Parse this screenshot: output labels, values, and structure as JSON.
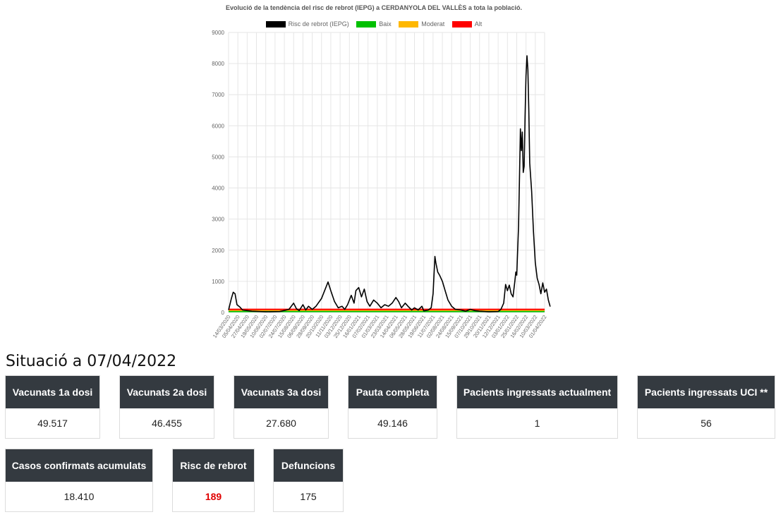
{
  "chart_data": {
    "type": "line",
    "title": "Evolució de la tendència del risc de rebrot (IEPG) a CERDANYOLA DEL VALLÈS a tota la població.",
    "series_names": [
      "Risc de rebrot (IEPG)",
      "Baix",
      "Moderat",
      "Alt"
    ],
    "series_colors": [
      "#000000",
      "#00c000",
      "#ffb800",
      "#ff0000"
    ],
    "ylim": [
      0,
      9000
    ],
    "yticks": [
      "0",
      "1000",
      "2000",
      "3000",
      "4000",
      "5000",
      "6000",
      "7000",
      "8000",
      "9000"
    ],
    "xticks": [
      "14/03/2020",
      "05/04/2020",
      "27/04/2020",
      "19/05/2020",
      "10/06/2020",
      "02/07/2020",
      "24/07/2020",
      "15/08/2020",
      "06/09/2020",
      "28/09/2020",
      "20/10/2020",
      "11/11/2020",
      "03/12/2020",
      "25/12/2020",
      "16/01/2021",
      "07/02/2021",
      "01/03/2021",
      "23/03/2021",
      "14/04/2021",
      "06/05/2021",
      "28/05/2021",
      "19/06/2021",
      "11/07/2021",
      "02/08/2021",
      "24/08/2021",
      "15/09/2021",
      "07/10/2021",
      "29/10/2021",
      "20/11/2021",
      "12/12/2021",
      "03/01/2022",
      "25/01/2022",
      "16/02/2022",
      "10/03/2022",
      "01/04/2022"
    ],
    "thresholds": {
      "baix": 30,
      "moderat": 70,
      "alt": 100
    },
    "grid": true,
    "legend_position": "top",
    "series": [
      {
        "name": "Risc de rebrot (IEPG)",
        "points": [
          [
            0,
            80
          ],
          [
            0.3,
            450
          ],
          [
            0.5,
            650
          ],
          [
            0.7,
            600
          ],
          [
            0.9,
            250
          ],
          [
            1.2,
            180
          ],
          [
            1.5,
            80
          ],
          [
            2.5,
            40
          ],
          [
            4,
            20
          ],
          [
            5.5,
            30
          ],
          [
            6.5,
            100
          ],
          [
            7.0,
            300
          ],
          [
            7.3,
            120
          ],
          [
            7.6,
            60
          ],
          [
            8.0,
            250
          ],
          [
            8.3,
            80
          ],
          [
            8.6,
            200
          ],
          [
            9.0,
            100
          ],
          [
            9.4,
            200
          ],
          [
            10.0,
            450
          ],
          [
            10.4,
            750
          ],
          [
            10.7,
            980
          ],
          [
            11.0,
            700
          ],
          [
            11.4,
            350
          ],
          [
            11.8,
            150
          ],
          [
            12.2,
            200
          ],
          [
            12.5,
            100
          ],
          [
            12.8,
            250
          ],
          [
            13.2,
            550
          ],
          [
            13.5,
            300
          ],
          [
            13.7,
            700
          ],
          [
            14.0,
            800
          ],
          [
            14.3,
            500
          ],
          [
            14.6,
            750
          ],
          [
            14.9,
            350
          ],
          [
            15.2,
            200
          ],
          [
            15.6,
            400
          ],
          [
            16.0,
            300
          ],
          [
            16.4,
            150
          ],
          [
            16.8,
            250
          ],
          [
            17.2,
            200
          ],
          [
            17.6,
            300
          ],
          [
            18.0,
            480
          ],
          [
            18.3,
            350
          ],
          [
            18.6,
            150
          ],
          [
            19.0,
            300
          ],
          [
            19.3,
            200
          ],
          [
            19.7,
            80
          ],
          [
            20.0,
            150
          ],
          [
            20.4,
            80
          ],
          [
            20.8,
            200
          ],
          [
            21.0,
            50
          ],
          [
            21.5,
            80
          ],
          [
            21.8,
            150
          ],
          [
            22.0,
            600
          ],
          [
            22.2,
            1800
          ],
          [
            22.3,
            1600
          ],
          [
            22.5,
            1300
          ],
          [
            22.7,
            1200
          ],
          [
            23.0,
            1000
          ],
          [
            23.3,
            700
          ],
          [
            23.6,
            400
          ],
          [
            24.0,
            200
          ],
          [
            24.4,
            100
          ],
          [
            25.0,
            80
          ],
          [
            25.5,
            40
          ],
          [
            26.0,
            100
          ],
          [
            26.5,
            60
          ],
          [
            27.0,
            40
          ],
          [
            28.0,
            20
          ],
          [
            29.0,
            30
          ],
          [
            29.3,
            100
          ],
          [
            29.6,
            300
          ],
          [
            29.8,
            900
          ],
          [
            30.0,
            700
          ],
          [
            30.2,
            880
          ],
          [
            30.4,
            600
          ],
          [
            30.6,
            500
          ],
          [
            30.8,
            1000
          ],
          [
            30.9,
            1300
          ],
          [
            31.0,
            1200
          ],
          [
            31.2,
            2800
          ],
          [
            31.4,
            5900
          ],
          [
            31.5,
            5200
          ],
          [
            31.6,
            5800
          ],
          [
            31.7,
            4500
          ],
          [
            31.8,
            4700
          ],
          [
            31.9,
            6300
          ],
          [
            32.0,
            7600
          ],
          [
            32.1,
            8250
          ],
          [
            32.2,
            7800
          ],
          [
            32.3,
            6500
          ],
          [
            32.4,
            4800
          ],
          [
            32.6,
            3900
          ],
          [
            32.8,
            2600
          ],
          [
            33.0,
            1600
          ],
          [
            33.2,
            1100
          ],
          [
            33.4,
            900
          ],
          [
            33.6,
            600
          ],
          [
            33.8,
            950
          ],
          [
            34.0,
            650
          ],
          [
            34.2,
            750
          ],
          [
            34.4,
            400
          ],
          [
            34.6,
            189
          ]
        ]
      }
    ]
  },
  "situation": {
    "title": "Situació a 07/04/2022"
  },
  "cards": [
    {
      "label": "Vacunats 1a dosi",
      "value": "49.517"
    },
    {
      "label": "Vacunats 2a dosi",
      "value": "46.455"
    },
    {
      "label": "Vacunats 3a dosi",
      "value": "27.680"
    },
    {
      "label": "Pauta completa",
      "value": "49.146"
    },
    {
      "label": "Pacients ingressats actualment",
      "value": "1"
    },
    {
      "label": "Pacients ingressats UCI **",
      "value": "56"
    },
    {
      "label": "Casos confirmats acumulats",
      "value": "18.410"
    },
    {
      "label": "Risc de rebrot",
      "value": "189"
    },
    {
      "label": "Defuncions",
      "value": "175"
    }
  ]
}
